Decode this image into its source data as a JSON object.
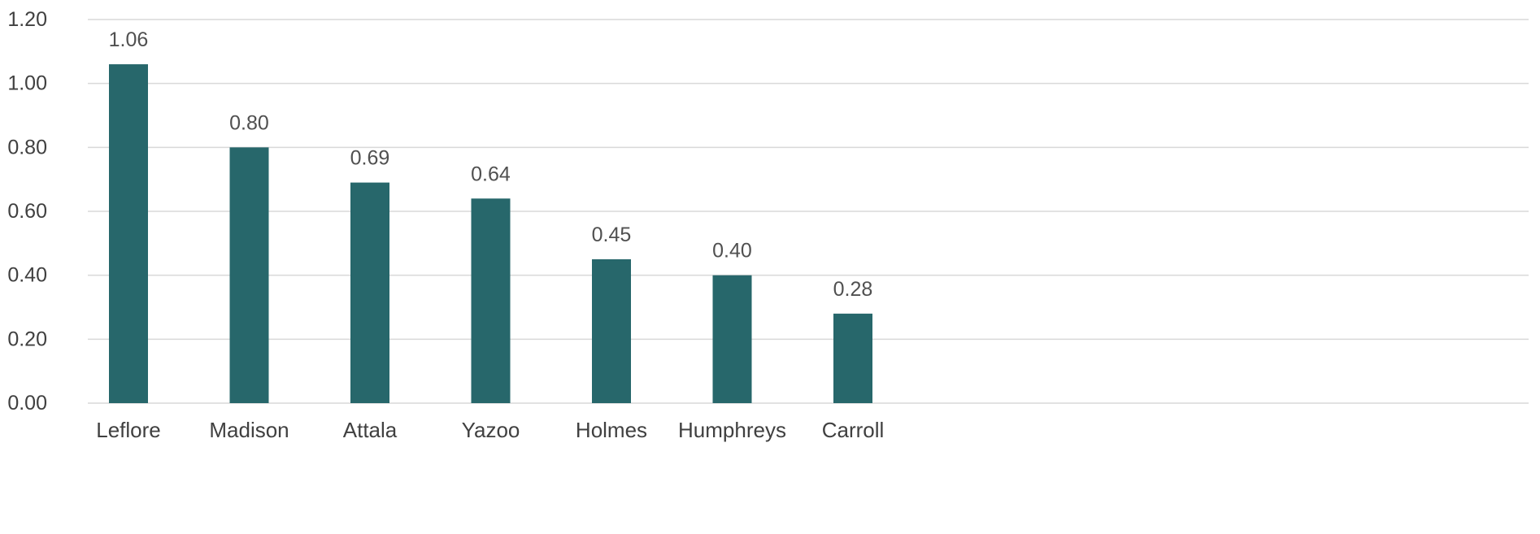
{
  "chart_data": {
    "type": "bar",
    "categories": [
      "Leflore",
      "Madison",
      "Attala",
      "Yazoo",
      "Holmes",
      "Humphreys",
      "Carroll"
    ],
    "values": [
      1.06,
      0.8,
      0.69,
      0.64,
      0.45,
      0.4,
      0.28
    ],
    "data_labels": [
      "1.06",
      "0.80",
      "0.69",
      "0.64",
      "0.45",
      "0.40",
      "0.28"
    ],
    "y_ticks": [
      "0.00",
      "0.20",
      "0.40",
      "0.60",
      "0.80",
      "1.00",
      "1.20"
    ],
    "ylim": [
      0,
      1.2
    ],
    "grid": true,
    "title": "",
    "xlabel": "",
    "ylabel": "",
    "bar_color": "#27676B",
    "grid_color": "#D9D9D9"
  }
}
